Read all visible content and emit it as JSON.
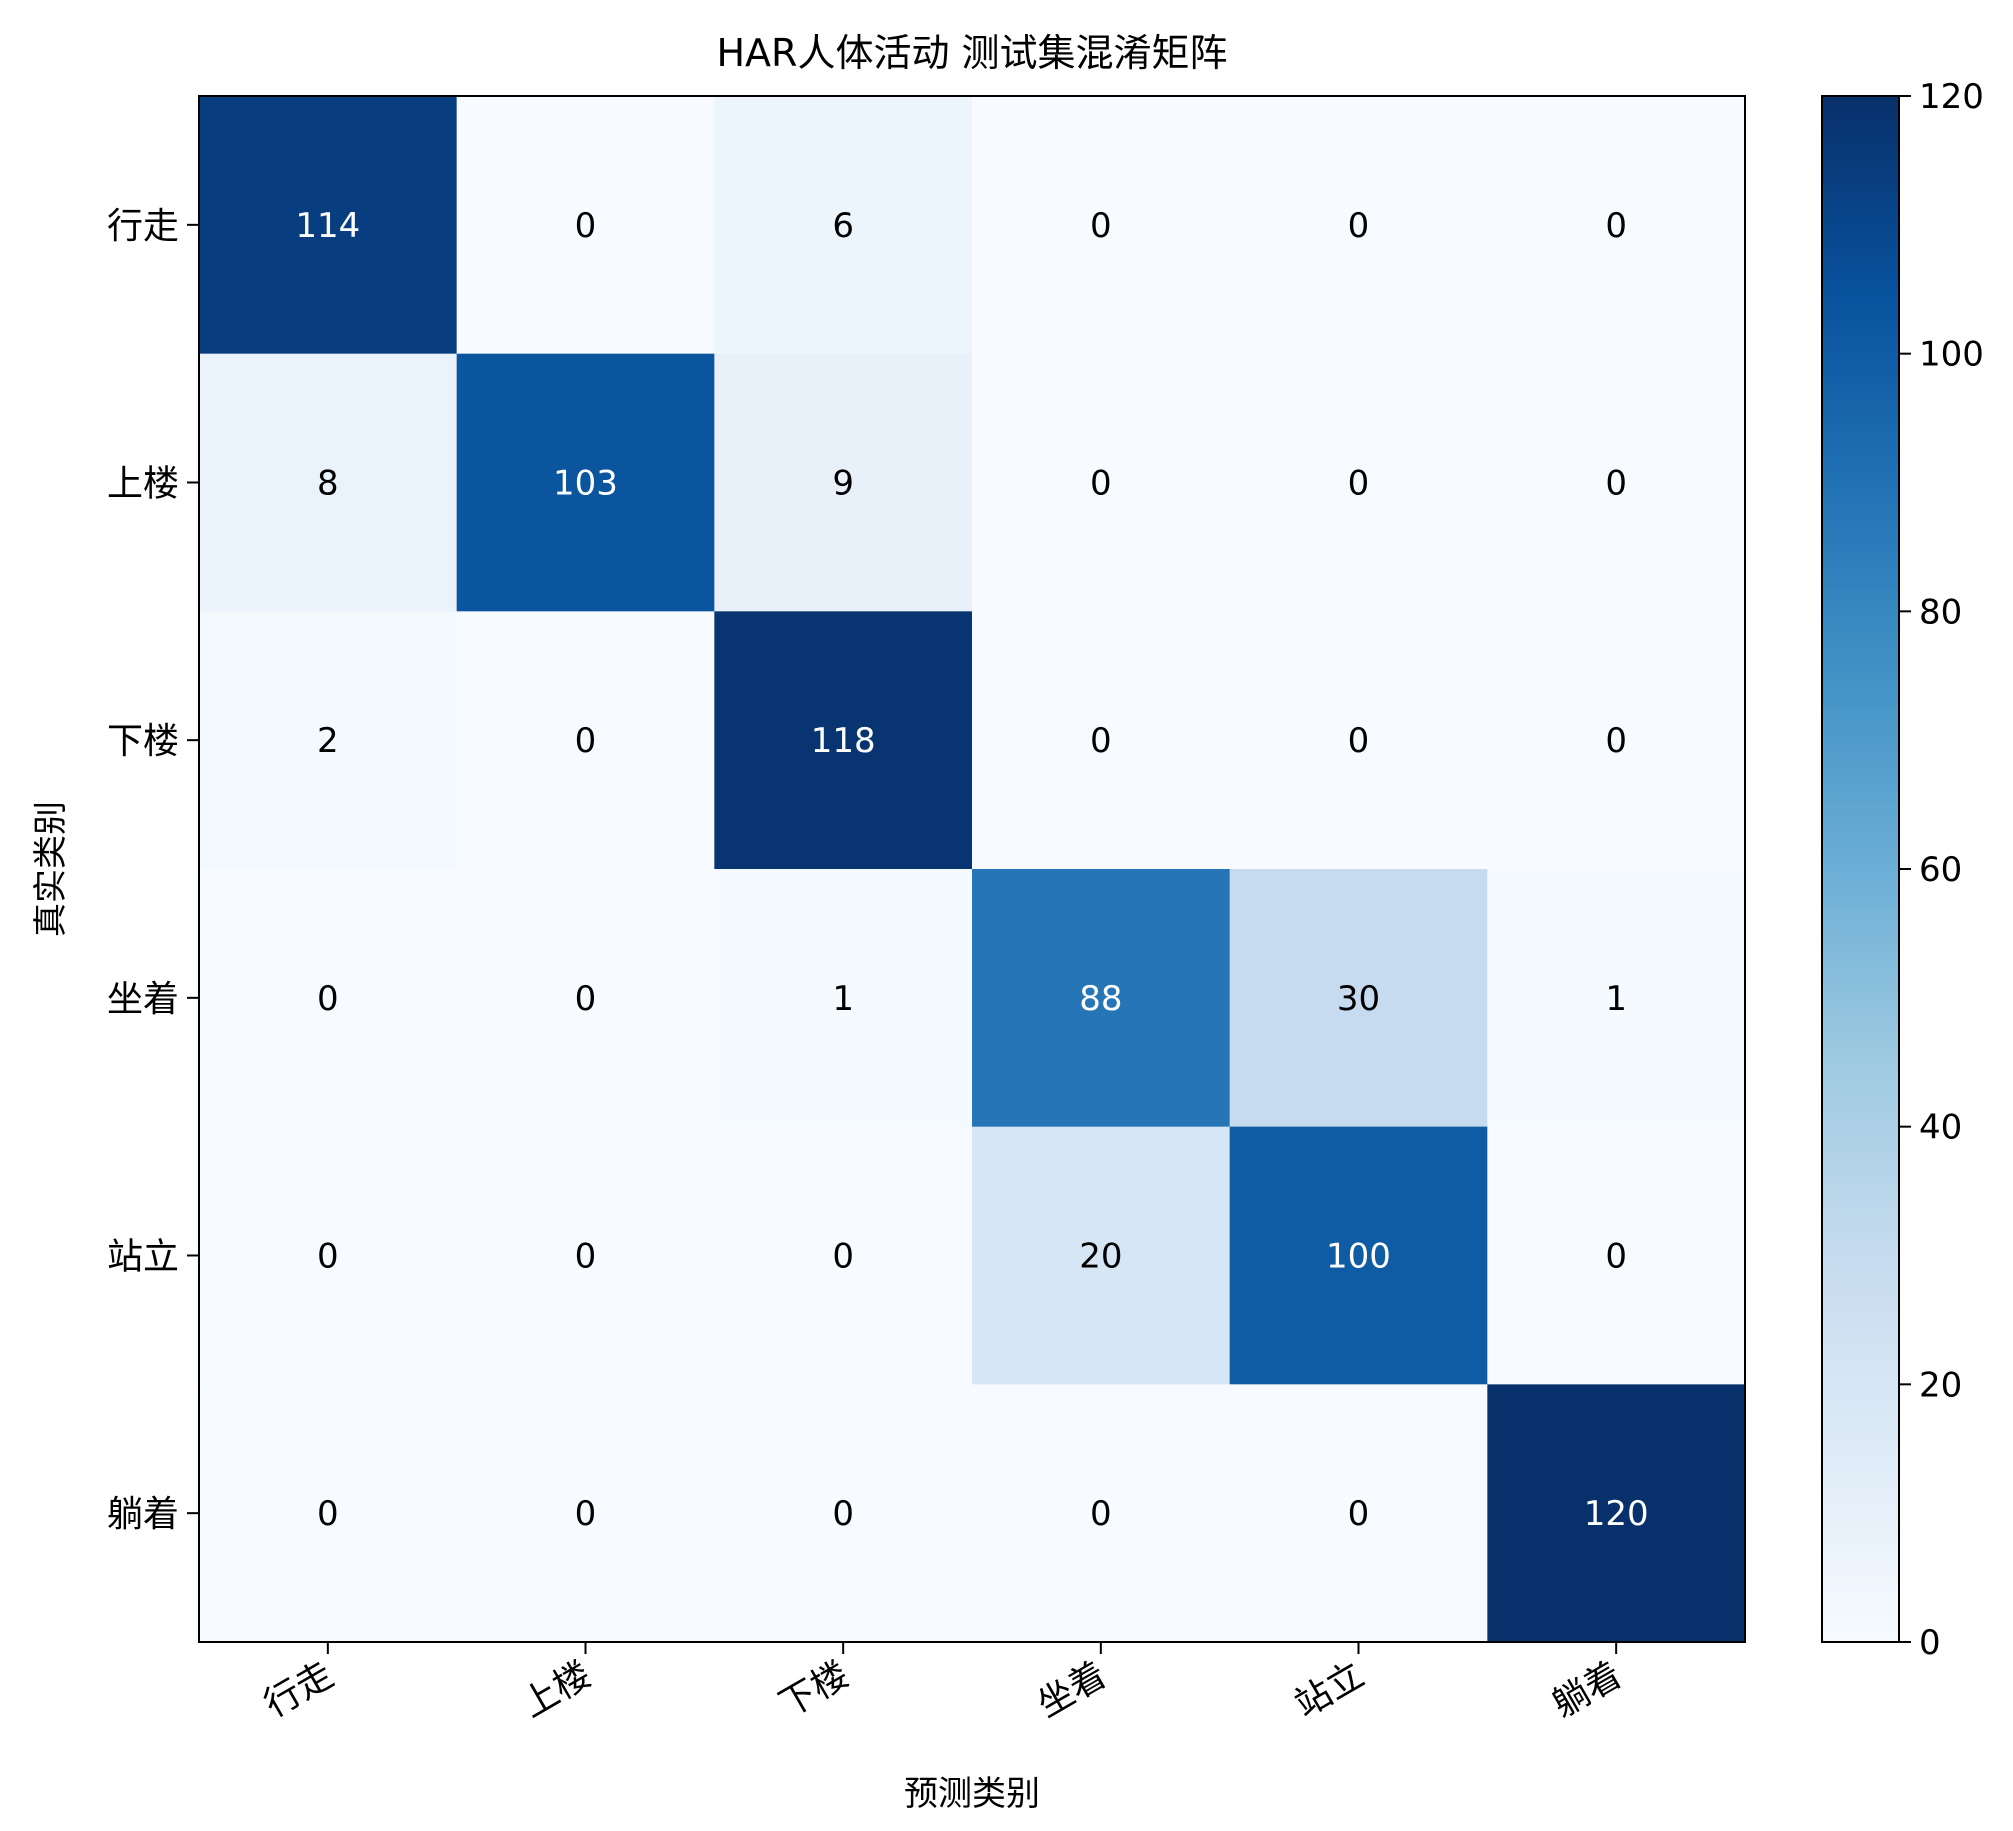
{
  "chart_data": {
    "type": "heatmap",
    "title": "HAR人体活动 测试集混淆矩阵",
    "xlabel": "预测类别",
    "ylabel": "真实类别",
    "x_categories": [
      "行走",
      "上楼",
      "下楼",
      "坐着",
      "站立",
      "躺着"
    ],
    "y_categories": [
      "行走",
      "上楼",
      "下楼",
      "坐着",
      "站立",
      "躺着"
    ],
    "values": [
      [
        114,
        0,
        6,
        0,
        0,
        0
      ],
      [
        8,
        103,
        9,
        0,
        0,
        0
      ],
      [
        2,
        0,
        118,
        0,
        0,
        0
      ],
      [
        0,
        0,
        1,
        88,
        30,
        1
      ],
      [
        0,
        0,
        0,
        20,
        100,
        0
      ],
      [
        0,
        0,
        0,
        0,
        0,
        120
      ]
    ],
    "colormap": "Blues",
    "vmin": 0,
    "vmax": 120,
    "colorbar_ticks": [
      "0",
      "20",
      "40",
      "60",
      "80",
      "100",
      "120"
    ],
    "colorbar_tick_values": [
      0,
      20,
      40,
      60,
      80,
      100,
      120
    ],
    "text_color_light": "#ffffff",
    "text_color_dark": "#000000",
    "colors": {
      "low": "#f7fbff",
      "high": "#08306b"
    }
  }
}
